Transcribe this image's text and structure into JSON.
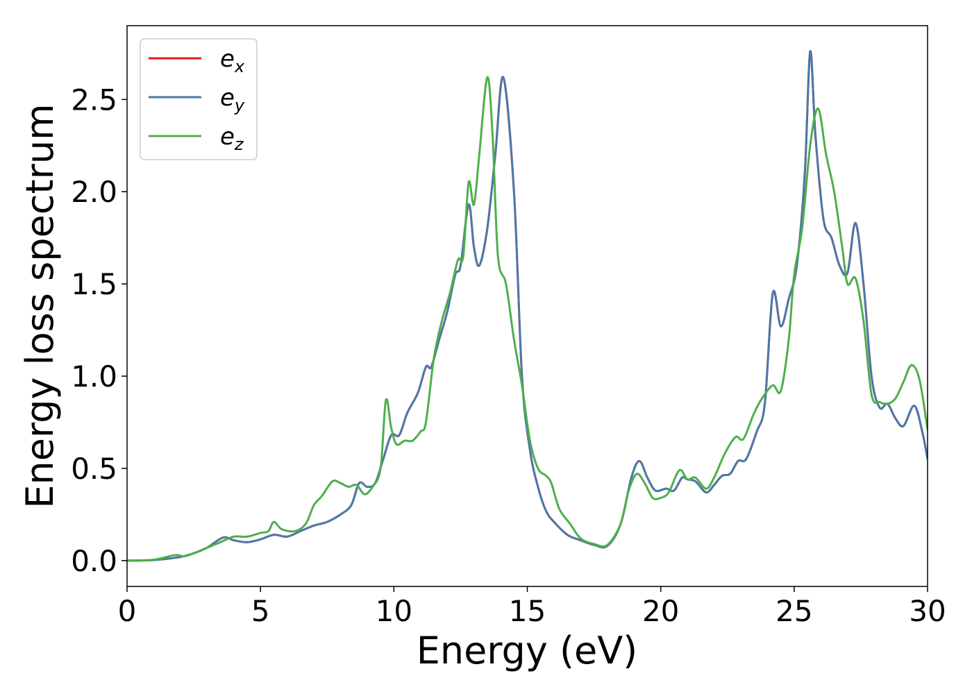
{
  "chart_data": {
    "type": "line",
    "title": "",
    "xlabel": "Energy (eV)",
    "ylabel": "Energy loss spectrum",
    "xlim": [
      0,
      30
    ],
    "ylim": [
      -0.14,
      2.9
    ],
    "xticks": [
      "0",
      "5",
      "10",
      "15",
      "20",
      "25",
      "30"
    ],
    "yticks": [
      "0.0",
      "0.5",
      "1.0",
      "1.5",
      "2.0",
      "2.5"
    ],
    "grid": false,
    "legend_position": "top-left",
    "series": [
      {
        "name": "e_x",
        "legend_base": "e",
        "legend_sub": "x",
        "color": "#e41a1c",
        "points": [
          [
            0,
            0
          ],
          [
            1,
            0.003
          ],
          [
            2,
            0.02
          ],
          [
            2.5,
            0.04
          ],
          [
            3,
            0.07
          ],
          [
            3.6,
            0.125
          ],
          [
            4,
            0.11
          ],
          [
            4.5,
            0.1
          ],
          [
            5,
            0.115
          ],
          [
            5.5,
            0.14
          ],
          [
            6,
            0.13
          ],
          [
            6.5,
            0.16
          ],
          [
            7,
            0.19
          ],
          [
            7.5,
            0.21
          ],
          [
            8,
            0.25
          ],
          [
            8.4,
            0.3
          ],
          [
            8.7,
            0.42
          ],
          [
            9,
            0.4
          ],
          [
            9.3,
            0.42
          ],
          [
            9.6,
            0.55
          ],
          [
            9.9,
            0.68
          ],
          [
            10.2,
            0.68
          ],
          [
            10.5,
            0.8
          ],
          [
            10.9,
            0.91
          ],
          [
            11.2,
            1.05
          ],
          [
            11.4,
            1.05
          ],
          [
            11.7,
            1.2
          ],
          [
            12,
            1.35
          ],
          [
            12.3,
            1.55
          ],
          [
            12.5,
            1.6
          ],
          [
            12.8,
            1.93
          ],
          [
            13,
            1.7
          ],
          [
            13.2,
            1.6
          ],
          [
            13.5,
            1.8
          ],
          [
            13.8,
            2.2
          ],
          [
            14.1,
            2.62
          ],
          [
            14.5,
            2.0
          ],
          [
            14.8,
            1.0
          ],
          [
            15.1,
            0.6
          ],
          [
            15.4,
            0.4
          ],
          [
            15.7,
            0.27
          ],
          [
            16,
            0.21
          ],
          [
            16.5,
            0.14
          ],
          [
            17,
            0.11
          ],
          [
            17.5,
            0.085
          ],
          [
            18,
            0.08
          ],
          [
            18.5,
            0.2
          ],
          [
            18.9,
            0.45
          ],
          [
            19.2,
            0.54
          ],
          [
            19.5,
            0.45
          ],
          [
            19.8,
            0.38
          ],
          [
            20.2,
            0.39
          ],
          [
            20.5,
            0.38
          ],
          [
            20.8,
            0.45
          ],
          [
            21,
            0.44
          ],
          [
            21.3,
            0.43
          ],
          [
            21.7,
            0.37
          ],
          [
            22,
            0.41
          ],
          [
            22.3,
            0.46
          ],
          [
            22.6,
            0.47
          ],
          [
            22.9,
            0.54
          ],
          [
            23.2,
            0.55
          ],
          [
            23.6,
            0.7
          ],
          [
            23.9,
            0.85
          ],
          [
            24.2,
            1.45
          ],
          [
            24.5,
            1.27
          ],
          [
            24.8,
            1.42
          ],
          [
            25.1,
            1.6
          ],
          [
            25.4,
            2.1
          ],
          [
            25.6,
            2.76
          ],
          [
            25.8,
            2.3
          ],
          [
            26.1,
            1.85
          ],
          [
            26.4,
            1.75
          ],
          [
            26.7,
            1.6
          ],
          [
            27,
            1.56
          ],
          [
            27.3,
            1.83
          ],
          [
            27.6,
            1.5
          ],
          [
            27.9,
            1.0
          ],
          [
            28.2,
            0.83
          ],
          [
            28.5,
            0.85
          ],
          [
            28.8,
            0.77
          ],
          [
            29.1,
            0.73
          ],
          [
            29.5,
            0.84
          ],
          [
            29.8,
            0.7
          ],
          [
            30,
            0.55
          ]
        ]
      },
      {
        "name": "e_y",
        "legend_base": "e",
        "legend_sub": "y",
        "color": "#4a79a8",
        "points": [
          [
            0,
            0
          ],
          [
            1,
            0.003
          ],
          [
            2,
            0.02
          ],
          [
            2.5,
            0.04
          ],
          [
            3,
            0.07
          ],
          [
            3.6,
            0.125
          ],
          [
            4,
            0.11
          ],
          [
            4.5,
            0.1
          ],
          [
            5,
            0.115
          ],
          [
            5.5,
            0.14
          ],
          [
            6,
            0.13
          ],
          [
            6.5,
            0.16
          ],
          [
            7,
            0.19
          ],
          [
            7.5,
            0.21
          ],
          [
            8,
            0.25
          ],
          [
            8.4,
            0.3
          ],
          [
            8.7,
            0.42
          ],
          [
            9,
            0.4
          ],
          [
            9.3,
            0.42
          ],
          [
            9.6,
            0.55
          ],
          [
            9.9,
            0.68
          ],
          [
            10.2,
            0.68
          ],
          [
            10.5,
            0.8
          ],
          [
            10.9,
            0.91
          ],
          [
            11.2,
            1.05
          ],
          [
            11.4,
            1.05
          ],
          [
            11.7,
            1.2
          ],
          [
            12,
            1.35
          ],
          [
            12.3,
            1.55
          ],
          [
            12.5,
            1.6
          ],
          [
            12.8,
            1.93
          ],
          [
            13,
            1.7
          ],
          [
            13.2,
            1.6
          ],
          [
            13.5,
            1.8
          ],
          [
            13.8,
            2.2
          ],
          [
            14.1,
            2.62
          ],
          [
            14.5,
            2.0
          ],
          [
            14.8,
            1.0
          ],
          [
            15.1,
            0.6
          ],
          [
            15.4,
            0.4
          ],
          [
            15.7,
            0.27
          ],
          [
            16,
            0.21
          ],
          [
            16.5,
            0.14
          ],
          [
            17,
            0.11
          ],
          [
            17.5,
            0.085
          ],
          [
            18,
            0.08
          ],
          [
            18.5,
            0.2
          ],
          [
            18.9,
            0.45
          ],
          [
            19.2,
            0.54
          ],
          [
            19.5,
            0.45
          ],
          [
            19.8,
            0.38
          ],
          [
            20.2,
            0.39
          ],
          [
            20.5,
            0.38
          ],
          [
            20.8,
            0.45
          ],
          [
            21,
            0.44
          ],
          [
            21.3,
            0.43
          ],
          [
            21.7,
            0.37
          ],
          [
            22,
            0.41
          ],
          [
            22.3,
            0.46
          ],
          [
            22.6,
            0.47
          ],
          [
            22.9,
            0.54
          ],
          [
            23.2,
            0.55
          ],
          [
            23.6,
            0.7
          ],
          [
            23.9,
            0.85
          ],
          [
            24.2,
            1.45
          ],
          [
            24.5,
            1.27
          ],
          [
            24.8,
            1.42
          ],
          [
            25.1,
            1.6
          ],
          [
            25.4,
            2.1
          ],
          [
            25.6,
            2.76
          ],
          [
            25.8,
            2.3
          ],
          [
            26.1,
            1.85
          ],
          [
            26.4,
            1.75
          ],
          [
            26.7,
            1.6
          ],
          [
            27,
            1.56
          ],
          [
            27.3,
            1.83
          ],
          [
            27.6,
            1.5
          ],
          [
            27.9,
            1.0
          ],
          [
            28.2,
            0.83
          ],
          [
            28.5,
            0.85
          ],
          [
            28.8,
            0.77
          ],
          [
            29.1,
            0.73
          ],
          [
            29.5,
            0.84
          ],
          [
            29.8,
            0.7
          ],
          [
            30,
            0.55
          ]
        ]
      },
      {
        "name": "e_z",
        "legend_base": "e",
        "legend_sub": "z",
        "color": "#4daf4a",
        "points": [
          [
            0,
            0
          ],
          [
            1,
            0.005
          ],
          [
            1.8,
            0.03
          ],
          [
            2.2,
            0.025
          ],
          [
            3,
            0.07
          ],
          [
            3.5,
            0.1
          ],
          [
            4,
            0.13
          ],
          [
            4.5,
            0.13
          ],
          [
            5,
            0.15
          ],
          [
            5.3,
            0.16
          ],
          [
            5.5,
            0.21
          ],
          [
            5.8,
            0.17
          ],
          [
            6.3,
            0.16
          ],
          [
            6.7,
            0.2
          ],
          [
            7,
            0.3
          ],
          [
            7.3,
            0.35
          ],
          [
            7.7,
            0.43
          ],
          [
            8,
            0.42
          ],
          [
            8.3,
            0.4
          ],
          [
            8.6,
            0.41
          ],
          [
            8.9,
            0.36
          ],
          [
            9.2,
            0.4
          ],
          [
            9.5,
            0.5
          ],
          [
            9.7,
            0.87
          ],
          [
            9.9,
            0.72
          ],
          [
            10.1,
            0.63
          ],
          [
            10.4,
            0.65
          ],
          [
            10.7,
            0.65
          ],
          [
            11,
            0.7
          ],
          [
            11.2,
            0.75
          ],
          [
            11.5,
            1.1
          ],
          [
            11.8,
            1.3
          ],
          [
            12.1,
            1.45
          ],
          [
            12.4,
            1.63
          ],
          [
            12.6,
            1.65
          ],
          [
            12.8,
            2.05
          ],
          [
            13,
            1.93
          ],
          [
            13.2,
            2.2
          ],
          [
            13.5,
            2.62
          ],
          [
            13.7,
            2.3
          ],
          [
            13.9,
            1.65
          ],
          [
            14.2,
            1.5
          ],
          [
            14.5,
            1.2
          ],
          [
            14.8,
            0.95
          ],
          [
            15.1,
            0.65
          ],
          [
            15.4,
            0.5
          ],
          [
            15.7,
            0.46
          ],
          [
            15.9,
            0.42
          ],
          [
            16.2,
            0.28
          ],
          [
            16.6,
            0.2
          ],
          [
            17,
            0.12
          ],
          [
            17.5,
            0.09
          ],
          [
            18,
            0.085
          ],
          [
            18.5,
            0.2
          ],
          [
            18.8,
            0.38
          ],
          [
            19.1,
            0.47
          ],
          [
            19.4,
            0.42
          ],
          [
            19.7,
            0.34
          ],
          [
            20,
            0.34
          ],
          [
            20.3,
            0.37
          ],
          [
            20.7,
            0.49
          ],
          [
            21,
            0.44
          ],
          [
            21.3,
            0.45
          ],
          [
            21.7,
            0.39
          ],
          [
            22,
            0.45
          ],
          [
            22.4,
            0.58
          ],
          [
            22.8,
            0.67
          ],
          [
            23.1,
            0.66
          ],
          [
            23.5,
            0.8
          ],
          [
            23.8,
            0.88
          ],
          [
            24.2,
            0.95
          ],
          [
            24.5,
            0.92
          ],
          [
            24.8,
            1.2
          ],
          [
            25,
            1.55
          ],
          [
            25.3,
            1.8
          ],
          [
            25.6,
            2.25
          ],
          [
            25.9,
            2.45
          ],
          [
            26.2,
            2.2
          ],
          [
            26.5,
            2.0
          ],
          [
            26.8,
            1.7
          ],
          [
            27,
            1.5
          ],
          [
            27.3,
            1.53
          ],
          [
            27.6,
            1.3
          ],
          [
            27.9,
            0.9
          ],
          [
            28.2,
            0.86
          ],
          [
            28.5,
            0.85
          ],
          [
            28.8,
            0.88
          ],
          [
            29.1,
            0.97
          ],
          [
            29.4,
            1.06
          ],
          [
            29.7,
            0.98
          ],
          [
            30,
            0.71
          ]
        ]
      }
    ]
  }
}
